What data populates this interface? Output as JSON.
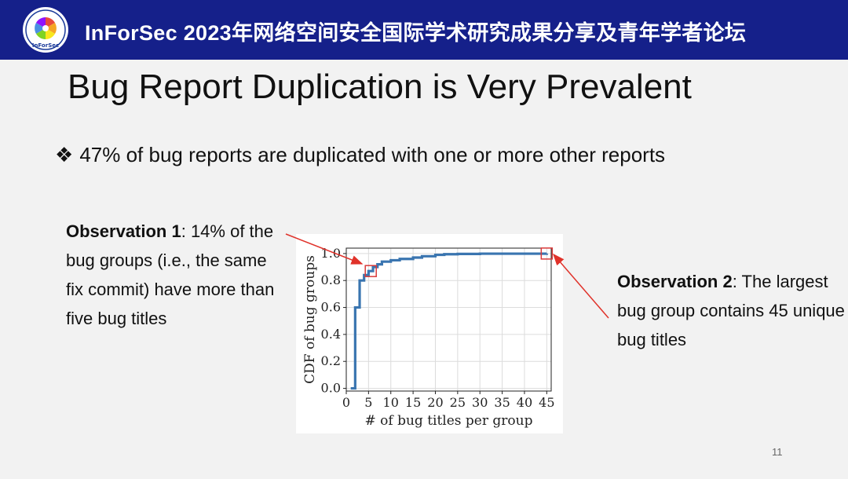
{
  "header": {
    "title": "InForSec 2023年网络空间安全国际学术研究成果分享及青年学者论坛",
    "logo_text": "InForSec",
    "color": "#15208a"
  },
  "slide": {
    "title": "Bug Report Duplication is Very Prevalent",
    "bullet_marker": "❖",
    "bullet": "47% of bug reports are duplicated with one or more other reports",
    "page_number": "11"
  },
  "observation1": {
    "heading": "Observation 1",
    "text": ": 14% of the bug groups (i.e., the same fix commit) have more than five bug titles"
  },
  "observation2": {
    "heading": "Observation 2",
    "text": ": The largest bug group contains 45 unique bug titles"
  },
  "chart_data": {
    "type": "line",
    "xlabel": "# of bug titles per group",
    "ylabel": "CDF of bug groups",
    "xlim": [
      0,
      46
    ],
    "ylim": [
      -0.02,
      1.04
    ],
    "xticks": [
      0,
      5,
      10,
      15,
      20,
      25,
      30,
      35,
      40,
      45
    ],
    "yticks": [
      0.0,
      0.2,
      0.4,
      0.6,
      0.8,
      1.0
    ],
    "ytick_labels": [
      "0.0",
      "0.2",
      "0.4",
      "0.6",
      "0.8",
      "1.0"
    ],
    "grid": true,
    "series": [
      {
        "color": "#3a75b0",
        "step": true,
        "x": [
          1,
          2,
          3,
          4,
          5,
          6,
          7,
          8,
          10,
          12,
          15,
          17,
          20,
          22,
          25,
          30,
          45
        ],
        "y": [
          0.0,
          0.6,
          0.8,
          0.84,
          0.87,
          0.9,
          0.92,
          0.94,
          0.95,
          0.96,
          0.97,
          0.98,
          0.99,
          0.995,
          0.997,
          0.999,
          1.0
        ]
      }
    ],
    "highlights": [
      {
        "x": 5.5,
        "y": 0.87,
        "color": "#d93a3a"
      },
      {
        "x": 45,
        "y": 1.0,
        "color": "#d93a3a"
      }
    ]
  }
}
